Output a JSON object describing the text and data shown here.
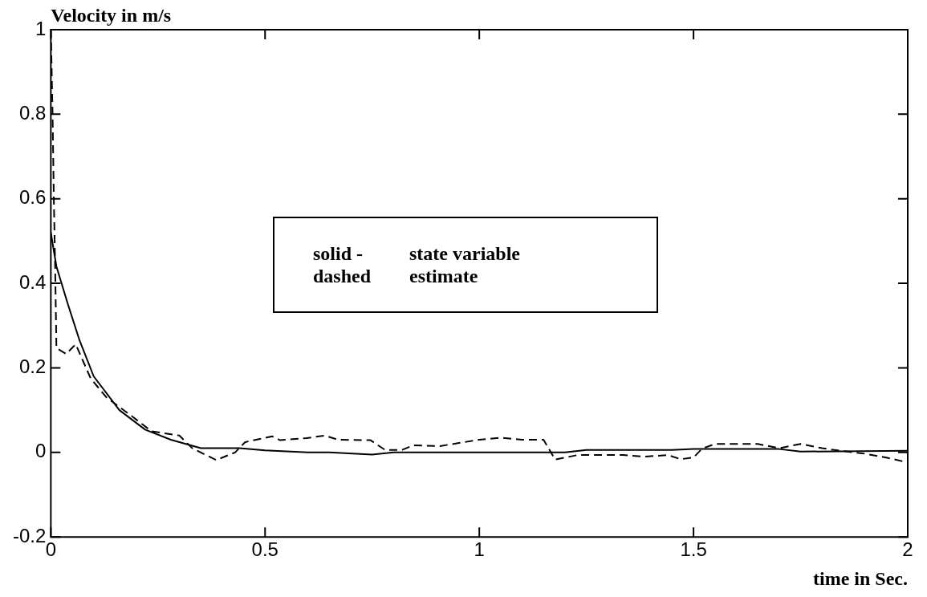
{
  "chart_data": {
    "type": "line",
    "ylabel": "Velocity in m/s",
    "xlabel": "time in Sec.",
    "xlim": [
      0,
      2
    ],
    "xticks": [
      0,
      0.5,
      1,
      1.5,
      2
    ],
    "ylim": [
      -0.2,
      1
    ],
    "yticks": [
      -0.2,
      0,
      0.2,
      0.4,
      0.6,
      0.8,
      1
    ],
    "grid": false,
    "legend": false,
    "marker": "none",
    "annotations": [
      "solid -",
      "state variable",
      "dashed",
      "estimate"
    ],
    "series": [
      {
        "color": "#000000",
        "line_style": "solid",
        "x": [
          0,
          0.013,
          0.04,
          0.067,
          0.1,
          0.16,
          0.22,
          0.28,
          0.35,
          0.44,
          0.5,
          0.6,
          0.65,
          0.75,
          0.8,
          1.0,
          1.2,
          1.25,
          1.45,
          1.5,
          1.7,
          1.75,
          2.0
        ],
        "values": [
          0.52,
          0.44,
          0.35,
          0.265,
          0.18,
          0.1,
          0.054,
          0.03,
          0.01,
          0.01,
          0.005,
          0,
          0,
          -0.005,
          0,
          0,
          0,
          0.006,
          0.006,
          0.008,
          0.008,
          0.002,
          0.004
        ]
      },
      {
        "color": "#000000",
        "line_style": "dashed",
        "x": [
          0,
          0.004,
          0.007,
          0.01,
          0.013,
          0.036,
          0.058,
          0.093,
          0.13,
          0.19,
          0.235,
          0.3,
          0.33,
          0.386,
          0.43,
          0.453,
          0.46,
          0.517,
          0.535,
          0.597,
          0.64,
          0.67,
          0.746,
          0.78,
          0.82,
          0.846,
          0.908,
          1.0,
          1.05,
          1.1,
          1.15,
          1.177,
          1.23,
          1.335,
          1.388,
          1.44,
          1.47,
          1.5,
          1.52,
          1.55,
          1.65,
          1.7,
          1.75,
          1.8,
          1.85,
          1.9,
          1.95,
          2.0
        ],
        "values": [
          1.0,
          0.8,
          0.6,
          0.44,
          0.247,
          0.233,
          0.256,
          0.175,
          0.13,
          0.085,
          0.05,
          0.04,
          0.01,
          -0.018,
          0,
          0.024,
          0.026,
          0.038,
          0.029,
          0.034,
          0.04,
          0.03,
          0.029,
          0.006,
          0.006,
          0.017,
          0.015,
          0.03,
          0.035,
          0.03,
          0.03,
          -0.017,
          -0.006,
          -0.006,
          -0.01,
          -0.006,
          -0.016,
          -0.012,
          0.009,
          0.02,
          0.02,
          0.01,
          0.02,
          0.01,
          0.003,
          -0.003,
          -0.012,
          -0.024
        ]
      }
    ]
  }
}
